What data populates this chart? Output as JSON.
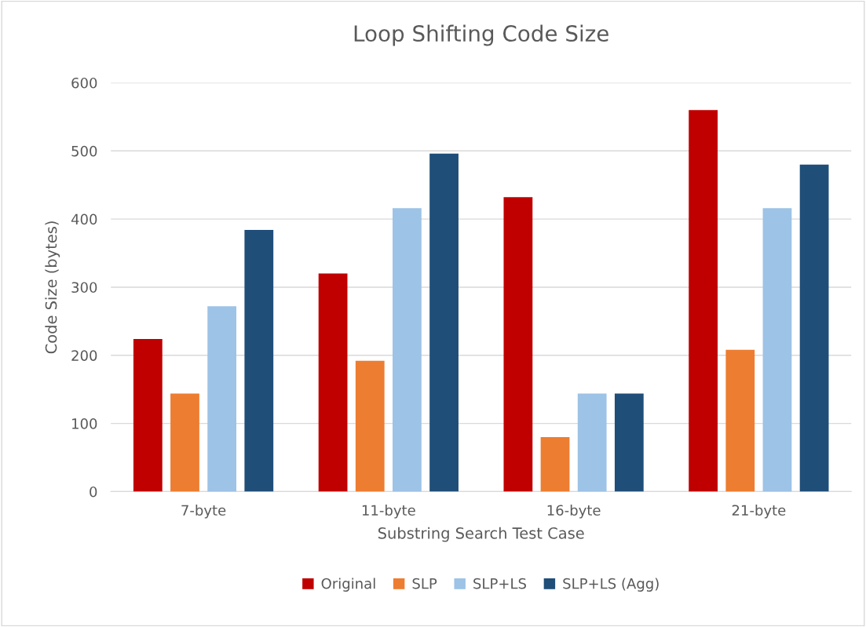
{
  "chart_data": {
    "type": "bar",
    "title": "Loop Shifting Code Size",
    "xlabel": "Substring Search Test Case",
    "ylabel": "Code Size (bytes)",
    "categories": [
      "7-byte",
      "11-byte",
      "16-byte",
      "21-byte"
    ],
    "series": [
      {
        "name": "Original",
        "color": "#c00000",
        "values": [
          224,
          320,
          432,
          560
        ]
      },
      {
        "name": "SLP",
        "color": "#ed7d31",
        "values": [
          144,
          192,
          80,
          208
        ]
      },
      {
        "name": "SLP+LS",
        "color": "#9dc3e6",
        "values": [
          272,
          416,
          144,
          416
        ]
      },
      {
        "name": "SLP+LS (Agg)",
        "color": "#1f4e79",
        "values": [
          384,
          496,
          144,
          480
        ]
      }
    ],
    "ylim": [
      0,
      600
    ],
    "yticks": [
      0,
      100,
      200,
      300,
      400,
      500,
      600
    ],
    "grid": "y",
    "legend": "bottom"
  }
}
